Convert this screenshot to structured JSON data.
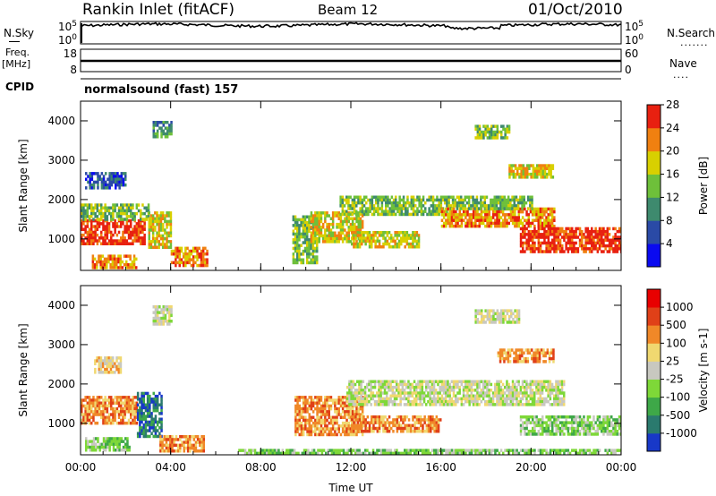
{
  "header": {
    "station": "Rankin Inlet (fitACF)",
    "beam": "Beam 12",
    "date": "01/Oct/2010"
  },
  "left_labels": {
    "nsky": "N.Sky",
    "freq": "Freq.",
    "freq_unit": "[MHz]",
    "cpid": "CPID"
  },
  "right_labels": {
    "nsearch": "N.Search",
    "nave": "Nave"
  },
  "strip_ticks": {
    "noise_left": [
      "10^5",
      "10^0"
    ],
    "noise_right": [
      "10^5",
      "10^0"
    ],
    "freq_left": [
      "18",
      "8"
    ],
    "freq_right": [
      "60",
      "0"
    ]
  },
  "cpid_text": "normalsound (fast) 157",
  "colors": {
    "frame": "#000000",
    "grid": "#000000"
  },
  "chart_data": [
    {
      "type": "heatmap",
      "title": "",
      "xlabel": "Time UT",
      "ylabel": "Slant Range [km]",
      "x_ticks": [
        "00:00",
        "04:00",
        "08:00",
        "12:00",
        "16:00",
        "20:00",
        "00:00"
      ],
      "y_ticks": [
        "1000",
        "2000",
        "3000",
        "4000"
      ],
      "ylim": [
        200,
        4500
      ],
      "colorbar": {
        "label": "Power [dB]",
        "ticks": [
          "4",
          "8",
          "12",
          "16",
          "20",
          "24",
          "28"
        ],
        "colors": [
          "#0a0af0",
          "#2a4aa6",
          "#3e8a6e",
          "#6ec03a",
          "#d8d000",
          "#f08010",
          "#e82010"
        ]
      },
      "regions": [
        {
          "t0": 0,
          "t1": 2.8,
          "r0": 900,
          "r1": 1500,
          "level": 6
        },
        {
          "t0": 0,
          "t1": 3.0,
          "r0": 1500,
          "r1": 1900,
          "level": 3
        },
        {
          "t0": 0.5,
          "t1": 2.5,
          "r0": 300,
          "r1": 600,
          "level": 5
        },
        {
          "t0": 3.0,
          "t1": 4.0,
          "r0": 800,
          "r1": 1700,
          "level": 4
        },
        {
          "t0": 4.0,
          "t1": 5.6,
          "r0": 300,
          "r1": 800,
          "level": 5
        },
        {
          "t0": 0.2,
          "t1": 2.0,
          "r0": 2300,
          "r1": 2700,
          "level": 1
        },
        {
          "t0": 3.2,
          "t1": 4.0,
          "r0": 3600,
          "r1": 4000,
          "level": 2
        },
        {
          "t0": 9.4,
          "t1": 10.5,
          "r0": 400,
          "r1": 1600,
          "level": 3
        },
        {
          "t0": 10.2,
          "t1": 12.5,
          "r0": 900,
          "r1": 1700,
          "level": 4
        },
        {
          "t0": 11.5,
          "t1": 16.5,
          "r0": 1600,
          "r1": 2100,
          "level": 3
        },
        {
          "t0": 12.0,
          "t1": 15.0,
          "r0": 800,
          "r1": 1200,
          "level": 4
        },
        {
          "t0": 16.0,
          "t1": 21.0,
          "r0": 1300,
          "r1": 1800,
          "level": 5
        },
        {
          "t0": 16.5,
          "t1": 20.0,
          "r0": 1800,
          "r1": 2100,
          "level": 3
        },
        {
          "t0": 19.5,
          "t1": 24.0,
          "r0": 700,
          "r1": 1300,
          "level": 6
        },
        {
          "t0": 17.5,
          "t1": 19.0,
          "r0": 3600,
          "r1": 3900,
          "level": 3
        },
        {
          "t0": 19.0,
          "t1": 21.0,
          "r0": 2600,
          "r1": 2900,
          "level": 4
        }
      ]
    },
    {
      "type": "heatmap",
      "title": "",
      "xlabel": "Time UT",
      "ylabel": "Slant Range [km]",
      "x_ticks": [
        "00:00",
        "04:00",
        "08:00",
        "12:00",
        "16:00",
        "20:00",
        "00:00"
      ],
      "y_ticks": [
        "1000",
        "2000",
        "3000",
        "4000"
      ],
      "ylim": [
        200,
        4500
      ],
      "colorbar": {
        "label": "Velocity [m s-1]",
        "ticks": [
          "1000",
          "500",
          "100",
          "25",
          "-25",
          "-100",
          "-500",
          "-1000"
        ],
        "colors": [
          "#1838c8",
          "#2a7a6e",
          "#3ea848",
          "#7ed838",
          "#c8c8c0",
          "#f0d870",
          "#f08828",
          "#e04018",
          "#e80000"
        ]
      },
      "regions": [
        {
          "t0": 0,
          "t1": 2.5,
          "r0": 1000,
          "r1": 1700,
          "level": 6
        },
        {
          "t0": 2.5,
          "t1": 3.6,
          "r0": 700,
          "r1": 1800,
          "level": 1
        },
        {
          "t0": 0.2,
          "t1": 2.2,
          "r0": 300,
          "r1": 650,
          "level": 3
        },
        {
          "t0": 3.5,
          "t1": 5.5,
          "r0": 300,
          "r1": 700,
          "level": 6
        },
        {
          "t0": 0.6,
          "t1": 1.8,
          "r0": 2300,
          "r1": 2700,
          "level": 5
        },
        {
          "t0": 3.2,
          "t1": 4.0,
          "r0": 3500,
          "r1": 4000,
          "level": 4
        },
        {
          "t0": 9.5,
          "t1": 12.5,
          "r0": 700,
          "r1": 1700,
          "level": 6
        },
        {
          "t0": 12.0,
          "t1": 16.0,
          "r0": 800,
          "r1": 1200,
          "level": 6
        },
        {
          "t0": 11.8,
          "t1": 21.5,
          "r0": 1500,
          "r1": 2100,
          "level": 4
        },
        {
          "t0": 19.5,
          "t1": 24.0,
          "r0": 700,
          "r1": 1200,
          "level": 3
        },
        {
          "t0": 17.5,
          "t1": 19.5,
          "r0": 3600,
          "r1": 3900,
          "level": 4
        },
        {
          "t0": 18.5,
          "t1": 21.0,
          "r0": 2600,
          "r1": 2900,
          "level": 6
        },
        {
          "t0": 7.0,
          "t1": 24.0,
          "r0": 200,
          "r1": 350,
          "level": 3
        }
      ]
    }
  ]
}
